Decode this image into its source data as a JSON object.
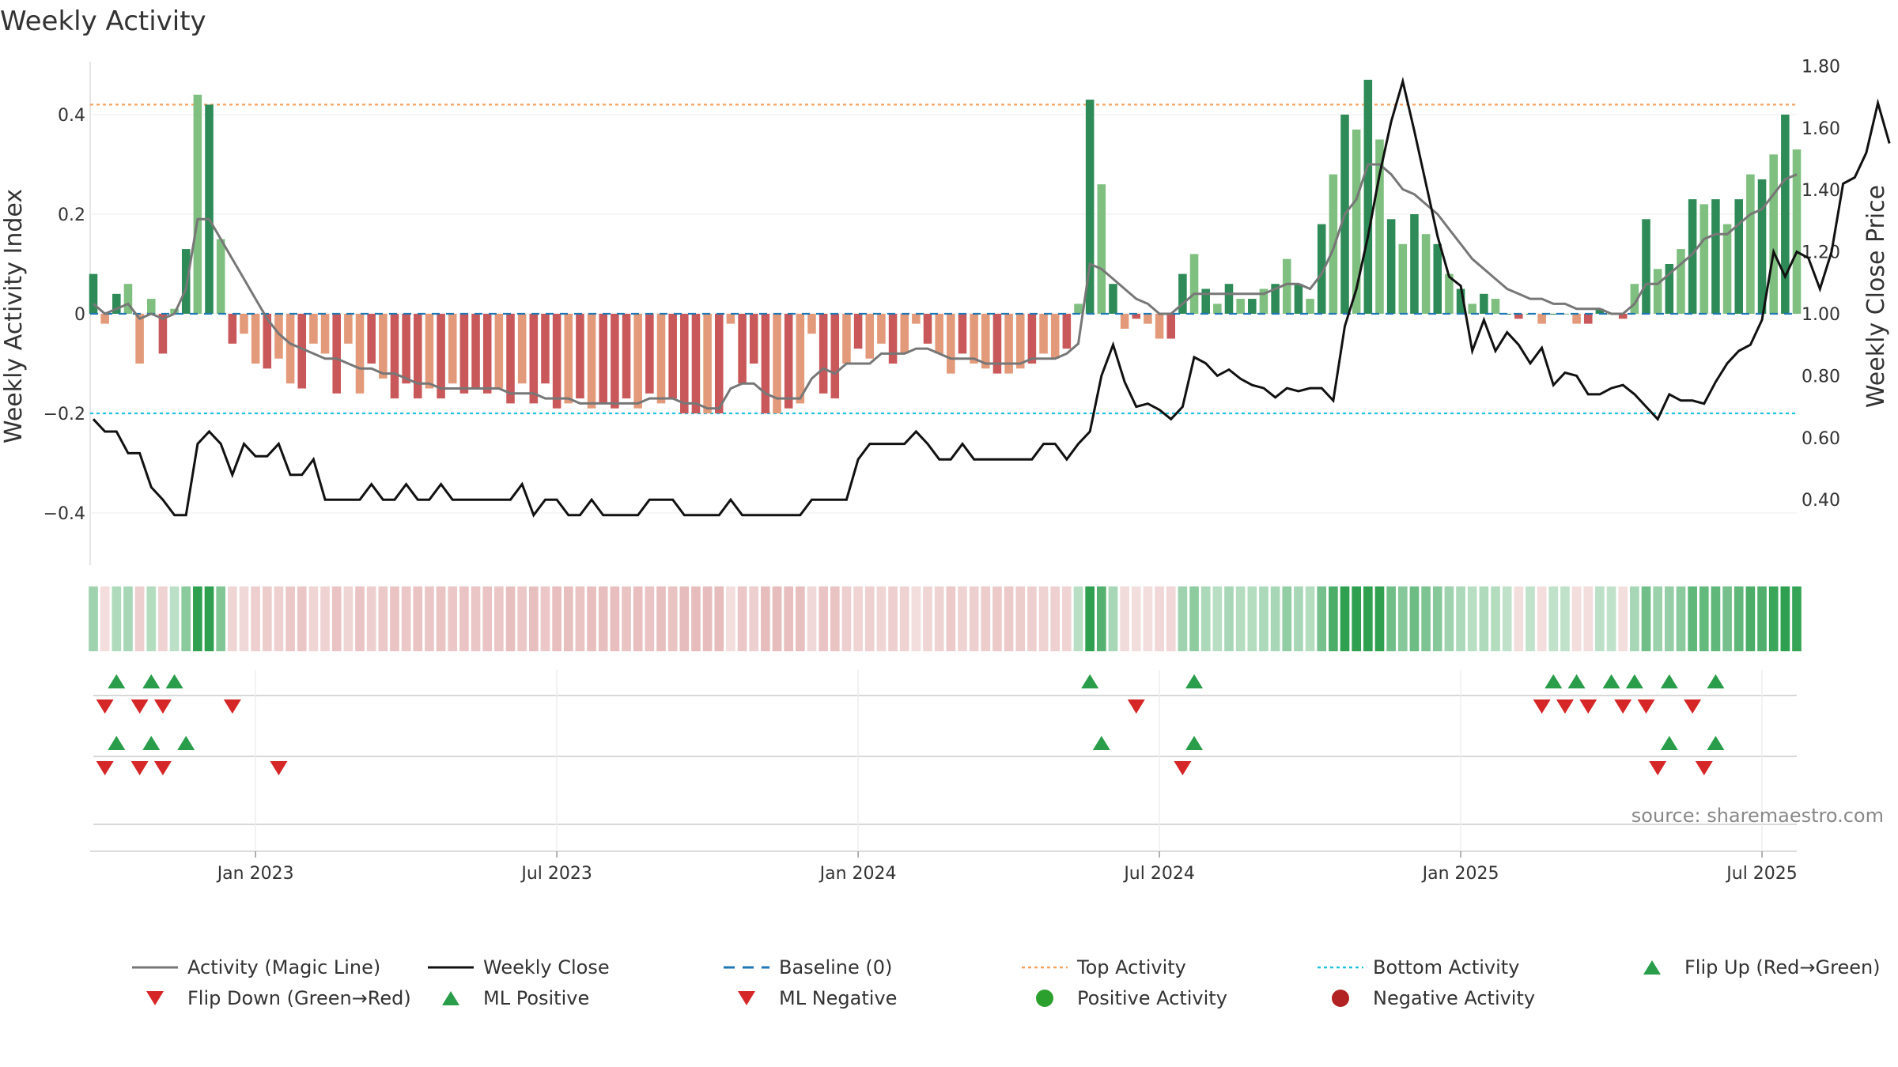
{
  "chart_data": {
    "type": "bar",
    "title": "Weekly Activity",
    "ylabel_left": "Weekly Activity Index",
    "ylabel_right": "Weekly Close Price",
    "ylim_left": [
      -0.5,
      0.5
    ],
    "ylim_right": [
      0.2,
      1.85
    ],
    "yticks_left": [
      0.4,
      0.2,
      0,
      -0.2,
      -0.4
    ],
    "yticks_left_labels": [
      "0.4",
      "0.2",
      "0",
      "−0.2",
      "−0.4"
    ],
    "yticks_right": [
      1.8,
      1.6,
      1.4,
      1.2,
      1.0,
      0.8,
      0.6,
      0.4
    ],
    "yticks_right_labels": [
      "1.80",
      "1.60",
      "1.40",
      "1.20",
      "1.00",
      "0.80",
      "0.60",
      "0.40"
    ],
    "x_ticks": [
      "Jan 2023",
      "Jul 2023",
      "Jan 2024",
      "Jul 2024",
      "Jan 2025",
      "Jul 2025"
    ],
    "x_tick_weeks": [
      14,
      40,
      66,
      92,
      118,
      144
    ],
    "top_activity": 0.42,
    "bottom_activity": -0.2,
    "activity": [
      0.08,
      -0.02,
      0.04,
      0.06,
      -0.1,
      0.03,
      -0.08,
      0.01,
      0.13,
      0.44,
      0.42,
      0.15,
      -0.06,
      -0.04,
      -0.1,
      -0.11,
      -0.09,
      -0.14,
      -0.15,
      -0.06,
      -0.08,
      -0.16,
      -0.06,
      -0.16,
      -0.1,
      -0.13,
      -0.17,
      -0.14,
      -0.17,
      -0.15,
      -0.17,
      -0.14,
      -0.16,
      -0.15,
      -0.16,
      -0.15,
      -0.18,
      -0.14,
      -0.18,
      -0.14,
      -0.19,
      -0.18,
      -0.17,
      -0.19,
      -0.18,
      -0.19,
      -0.17,
      -0.19,
      -0.16,
      -0.18,
      -0.17,
      -0.2,
      -0.2,
      -0.2,
      -0.2,
      -0.02,
      -0.14,
      -0.1,
      -0.2,
      -0.2,
      -0.19,
      -0.18,
      -0.04,
      -0.16,
      -0.17,
      -0.1,
      -0.07,
      -0.09,
      -0.06,
      -0.1,
      -0.08,
      -0.02,
      -0.06,
      -0.08,
      -0.12,
      -0.08,
      -0.1,
      -0.11,
      -0.12,
      -0.12,
      -0.11,
      -0.1,
      -0.08,
      -0.09,
      -0.07,
      0.02,
      0.43,
      0.26,
      0.06,
      -0.03,
      -0.01,
      -0.02,
      -0.05,
      -0.05,
      0.08,
      0.12,
      0.05,
      0.02,
      0.06,
      0.03,
      0.03,
      0.05,
      0.06,
      0.11,
      0.06,
      0.03,
      0.18,
      0.28,
      0.4,
      0.37,
      0.47,
      0.35,
      0.19,
      0.14,
      0.2,
      0.16,
      0.14,
      0.08,
      0.05,
      0.02,
      0.04,
      0.03,
      0.0,
      -0.01,
      0.0,
      -0.02,
      0.0,
      0.0,
      -0.02,
      -0.02,
      0.01,
      0.0,
      -0.01,
      0.06,
      0.19,
      0.09,
      0.1,
      0.13,
      0.23,
      0.22,
      0.23,
      0.18,
      0.23,
      0.28,
      0.27,
      0.32,
      0.4,
      0.33
    ],
    "magic_line": [
      0.02,
      0.0,
      0.01,
      0.02,
      -0.01,
      0.0,
      -0.01,
      0.0,
      0.05,
      0.19,
      0.19,
      0.15,
      0.11,
      0.07,
      0.03,
      -0.01,
      -0.04,
      -0.06,
      -0.07,
      -0.08,
      -0.09,
      -0.09,
      -0.1,
      -0.11,
      -0.11,
      -0.12,
      -0.12,
      -0.13,
      -0.14,
      -0.14,
      -0.15,
      -0.15,
      -0.15,
      -0.15,
      -0.15,
      -0.15,
      -0.16,
      -0.16,
      -0.16,
      -0.17,
      -0.17,
      -0.17,
      -0.18,
      -0.18,
      -0.18,
      -0.18,
      -0.18,
      -0.18,
      -0.17,
      -0.17,
      -0.17,
      -0.18,
      -0.18,
      -0.19,
      -0.19,
      -0.15,
      -0.14,
      -0.14,
      -0.16,
      -0.17,
      -0.17,
      -0.17,
      -0.13,
      -0.11,
      -0.12,
      -0.1,
      -0.1,
      -0.1,
      -0.08,
      -0.08,
      -0.08,
      -0.07,
      -0.07,
      -0.08,
      -0.09,
      -0.09,
      -0.09,
      -0.1,
      -0.1,
      -0.1,
      -0.1,
      -0.09,
      -0.09,
      -0.09,
      -0.08,
      -0.06,
      0.1,
      0.09,
      0.07,
      0.05,
      0.03,
      0.02,
      0.0,
      0.0,
      0.02,
      0.04,
      0.04,
      0.04,
      0.04,
      0.04,
      0.04,
      0.04,
      0.05,
      0.06,
      0.06,
      0.05,
      0.08,
      0.13,
      0.2,
      0.23,
      0.3,
      0.3,
      0.28,
      0.25,
      0.24,
      0.22,
      0.2,
      0.17,
      0.14,
      0.11,
      0.09,
      0.07,
      0.05,
      0.04,
      0.03,
      0.03,
      0.02,
      0.02,
      0.01,
      0.01,
      0.01,
      0.0,
      0.0,
      0.02,
      0.06,
      0.06,
      0.08,
      0.1,
      0.12,
      0.15,
      0.16,
      0.16,
      0.18,
      0.2,
      0.21,
      0.24,
      0.27,
      0.28
    ],
    "weekly_close": [
      0.66,
      0.62,
      0.62,
      0.55,
      0.55,
      0.44,
      0.4,
      0.35,
      0.35,
      0.58,
      0.62,
      0.58,
      0.48,
      0.58,
      0.54,
      0.54,
      0.58,
      0.48,
      0.48,
      0.53,
      0.4,
      0.4,
      0.4,
      0.4,
      0.45,
      0.4,
      0.4,
      0.45,
      0.4,
      0.4,
      0.45,
      0.4,
      0.4,
      0.4,
      0.4,
      0.4,
      0.4,
      0.45,
      0.35,
      0.4,
      0.4,
      0.35,
      0.35,
      0.4,
      0.35,
      0.35,
      0.35,
      0.35,
      0.4,
      0.4,
      0.4,
      0.35,
      0.35,
      0.35,
      0.35,
      0.4,
      0.35,
      0.35,
      0.35,
      0.35,
      0.35,
      0.35,
      0.4,
      0.4,
      0.4,
      0.4,
      0.53,
      0.58,
      0.58,
      0.58,
      0.58,
      0.62,
      0.58,
      0.53,
      0.53,
      0.58,
      0.53,
      0.53,
      0.53,
      0.53,
      0.53,
      0.53,
      0.58,
      0.58,
      0.53,
      0.58,
      0.62,
      0.8,
      0.9,
      0.78,
      0.7,
      0.71,
      0.69,
      0.66,
      0.7,
      0.86,
      0.84,
      0.8,
      0.82,
      0.79,
      0.77,
      0.76,
      0.73,
      0.76,
      0.75,
      0.76,
      0.76,
      0.72,
      0.96,
      1.08,
      1.25,
      1.45,
      1.62,
      1.75,
      1.59,
      1.42,
      1.25,
      1.12,
      1.09,
      0.88,
      0.98,
      0.88,
      0.94,
      0.9,
      0.84,
      0.89,
      0.77,
      0.81,
      0.8,
      0.74,
      0.74,
      0.76,
      0.77,
      0.74,
      0.7,
      0.66,
      0.74,
      0.72,
      0.72,
      0.71,
      0.78,
      0.84,
      0.88,
      0.9,
      0.98,
      1.2,
      1.12,
      1.2,
      1.18,
      1.08,
      1.2,
      1.42,
      1.44,
      1.52,
      1.68,
      1.55
    ],
    "flip_up": [
      2,
      5,
      7,
      86,
      95,
      126,
      128,
      131,
      133,
      136,
      140
    ],
    "flip_down": [
      1,
      4,
      6,
      12,
      90,
      125,
      127,
      129,
      132,
      134,
      138
    ],
    "ml_positive": [
      2,
      5,
      8,
      87,
      95,
      136,
      140
    ],
    "ml_negative": [
      1,
      4,
      6,
      16,
      94,
      135,
      139
    ],
    "legend": [
      {
        "label": "Activity (Magic Line)",
        "symbol": "line",
        "color": "#777777"
      },
      {
        "label": "Weekly Close",
        "symbol": "line",
        "color": "#111111"
      },
      {
        "label": "Baseline (0)",
        "symbol": "dash",
        "color": "#1f77b4"
      },
      {
        "label": "Top Activity",
        "symbol": "dot-line",
        "color": "#f4a261"
      },
      {
        "label": "Bottom Activity",
        "symbol": "dot-line",
        "color": "#22c1dd"
      },
      {
        "label": "Flip Up (Red→Green)",
        "symbol": "triangle-up",
        "color": "#2a9d4a"
      },
      {
        "label": "Flip Down (Green→Red)",
        "symbol": "triangle-down",
        "color": "#d62728"
      },
      {
        "label": "ML Positive",
        "symbol": "triangle-up",
        "color": "#2a9d4a"
      },
      {
        "label": "ML Negative",
        "symbol": "triangle-down",
        "color": "#d62728"
      },
      {
        "label": "Positive Activity",
        "symbol": "circle",
        "color": "#2ca02c"
      },
      {
        "label": "Negative Activity",
        "symbol": "circle",
        "color": "#b22222"
      }
    ],
    "colors": {
      "pos_strong": "#2e8b57",
      "pos_light": "#7fbf7f",
      "neg_strong": "#c9585a",
      "neg_light": "#e39a7a",
      "top_line": "#f4a261",
      "bottom_line": "#22c1dd",
      "baseline": "#1f77b4"
    },
    "source": "source: sharemaestro.com"
  }
}
